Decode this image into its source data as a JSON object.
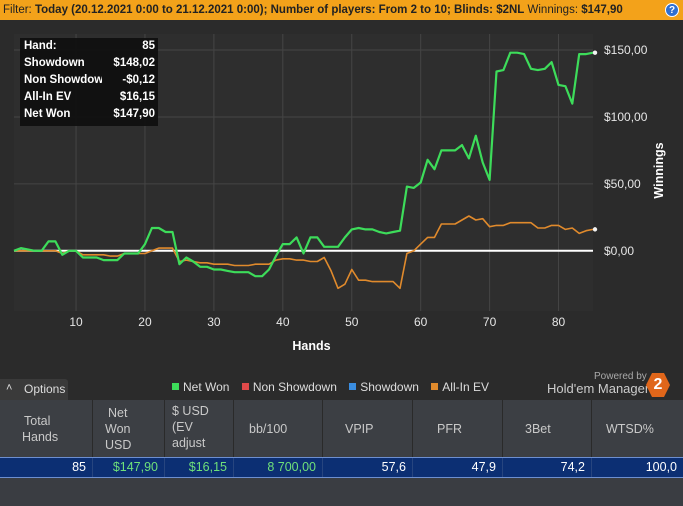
{
  "filter_bar": {
    "prefix": "Filter:",
    "filter_text": "Today (20.12.2021 0:00 to 21.12.2021 0:00); Number of players: From 2 to 10; Blinds: $2NL",
    "winnings_label": "Winnings:",
    "winnings_value": "$147,90",
    "help_icon": "question-mark-icon",
    "help_glyph": "?"
  },
  "stats_box": {
    "rows": [
      {
        "label": "Hand:",
        "value": "85"
      },
      {
        "label": "Showdown",
        "value": "$148,02"
      },
      {
        "label": "Non Showdown",
        "value": "-$0,12"
      },
      {
        "label": "All-In EV",
        "value": "$16,15"
      },
      {
        "label": "Net Won",
        "value": "$147,90"
      }
    ]
  },
  "chart_data": {
    "type": "line",
    "xlabel": "Hands",
    "ylabel": "Winnings",
    "x_ticks": [
      "10",
      "20",
      "30",
      "40",
      "50",
      "60",
      "70",
      "80"
    ],
    "x_tick_values": [
      10,
      20,
      30,
      40,
      50,
      60,
      70,
      80
    ],
    "y_ticks": [
      "$150,00",
      "$100,00",
      "$50,00",
      "$0,00"
    ],
    "y_tick_values": [
      150,
      100,
      50,
      0
    ],
    "xlim": [
      1,
      85
    ],
    "ylim": [
      -45,
      162
    ],
    "grid": true,
    "series": [
      {
        "name": "Net Won",
        "color": "#3ddc5a",
        "x": [
          1,
          2,
          3,
          4,
          5,
          6,
          7,
          8,
          9,
          10,
          11,
          12,
          13,
          14,
          15,
          16,
          17,
          18,
          19,
          20,
          21,
          22,
          23,
          24,
          25,
          26,
          27,
          28,
          29,
          30,
          31,
          32,
          33,
          34,
          35,
          36,
          37,
          38,
          39,
          40,
          41,
          42,
          43,
          44,
          45,
          46,
          47,
          48,
          49,
          50,
          51,
          52,
          53,
          54,
          55,
          56,
          57,
          58,
          59,
          60,
          61,
          62,
          63,
          64,
          65,
          66,
          67,
          68,
          69,
          70,
          71,
          72,
          73,
          74,
          75,
          76,
          77,
          78,
          79,
          80,
          81,
          82,
          83,
          84,
          85
        ],
        "y": [
          0,
          2,
          1,
          0,
          0,
          7,
          7,
          -3,
          0,
          0,
          -5,
          -5,
          -5,
          -7,
          -7,
          -7,
          -2,
          -2,
          -2,
          5,
          17,
          17,
          14,
          14,
          -10,
          -5,
          -8,
          -12,
          -12,
          -14,
          -14,
          -15,
          -16,
          -16,
          -16,
          -19,
          -19,
          -14,
          -4,
          5,
          5,
          10,
          -2,
          10,
          10,
          3,
          3,
          3,
          10,
          16,
          17,
          16,
          16,
          14,
          13,
          14,
          15,
          48,
          47,
          51,
          68,
          61,
          75,
          75,
          75,
          79,
          69,
          86,
          66,
          53,
          134,
          135,
          148,
          148,
          147,
          136,
          135,
          136,
          141,
          124,
          123,
          110,
          147,
          147,
          148
        ]
      },
      {
        "name": "All-In EV",
        "color": "#e08a2c",
        "x": [
          1,
          2,
          3,
          4,
          5,
          6,
          7,
          8,
          9,
          10,
          11,
          12,
          13,
          14,
          15,
          16,
          17,
          18,
          19,
          20,
          21,
          22,
          23,
          24,
          25,
          26,
          27,
          28,
          29,
          30,
          31,
          32,
          33,
          34,
          35,
          36,
          37,
          38,
          39,
          40,
          41,
          42,
          43,
          44,
          45,
          46,
          47,
          48,
          49,
          50,
          51,
          52,
          53,
          54,
          55,
          56,
          57,
          58,
          59,
          60,
          61,
          62,
          63,
          64,
          65,
          66,
          67,
          68,
          69,
          70,
          71,
          72,
          73,
          74,
          75,
          76,
          77,
          78,
          79,
          80,
          81,
          82,
          83,
          84,
          85
        ],
        "y": [
          0,
          0,
          0,
          0,
          0,
          0,
          0,
          -2,
          0,
          0,
          -3,
          -3,
          -3,
          -3,
          -4,
          -4,
          -2,
          -2,
          -2,
          -2,
          0,
          2,
          2,
          2,
          -8,
          -7,
          -8,
          -9,
          -9,
          -10,
          -10,
          -10,
          -11,
          -11,
          -11,
          -10,
          -10,
          -10,
          -7,
          -6,
          -6,
          -7,
          -7,
          -8,
          -8,
          -5,
          -15,
          -28,
          -25,
          -14,
          -22,
          -22,
          -23,
          -23,
          -23,
          -23,
          -28,
          -2,
          0,
          5,
          10,
          10,
          20,
          20,
          20,
          23,
          26,
          23,
          24,
          18,
          19,
          19,
          21,
          21,
          21,
          21,
          17,
          17,
          19,
          19,
          16,
          17,
          13,
          15,
          16
        ]
      }
    ]
  },
  "legend": {
    "items": [
      {
        "label": "Net Won",
        "color": "#3ddc5a"
      },
      {
        "label": "Non Showdown",
        "color": "#e04a4a"
      },
      {
        "label": "Showdown",
        "color": "#3a8de0"
      },
      {
        "label": "All-In EV",
        "color": "#e08a2c"
      }
    ]
  },
  "options_button": {
    "label": "Options",
    "icon": "chevron-up-icon",
    "glyph": "˄"
  },
  "branding": {
    "powered_by": "Powered by",
    "name": "Hold'em Manager",
    "logo_glyph": "2"
  },
  "table": {
    "headers": [
      [
        "Total",
        "Hands"
      ],
      [
        "Net",
        "Won",
        "USD"
      ],
      [
        "$ USD",
        "(EV",
        "adjust"
      ],
      [
        "bb/100"
      ],
      [
        "VPIP"
      ],
      [
        "PFR"
      ],
      [
        "3Bet"
      ],
      [
        "WTSD%"
      ]
    ],
    "row": [
      "85",
      "$147,90",
      "$16,15",
      "8 700,00",
      "57,6",
      "47,9",
      "74,2",
      "100,0"
    ]
  }
}
